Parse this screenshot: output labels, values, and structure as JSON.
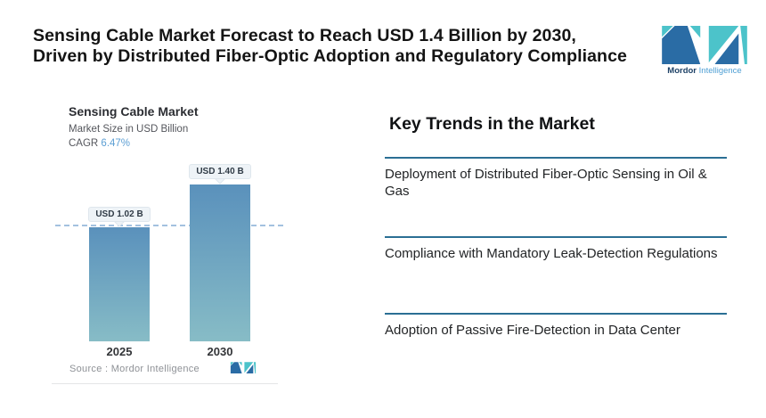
{
  "header": {
    "title_line1": "Sensing Cable Market Forecast to Reach USD 1.4 Billion by 2030,",
    "title_line2": "Driven by Distributed Fiber-Optic Adoption and Regulatory Compliance"
  },
  "logo": {
    "word_bold": "Mordor",
    "word_light": "Intelligence"
  },
  "chart": {
    "title": "Sensing Cable Market",
    "subtitle": "Market Size in USD Billion",
    "cagr_label": "CAGR ",
    "cagr_value": "6.47%",
    "source": "Source :  Mordor Intelligence"
  },
  "chart_data": {
    "type": "bar",
    "categories": [
      "2025",
      "2030"
    ],
    "values": [
      1.02,
      1.4
    ],
    "value_labels": [
      "USD 1.02 B",
      "USD 1.40 B"
    ],
    "title": "Sensing Cable Market",
    "ylabel": "Market Size in USD Billion",
    "cagr": "6.47%",
    "dashed_reference_value": 1.02,
    "ylim": [
      0,
      1.55
    ],
    "grid": false,
    "legend": false
  },
  "trends": {
    "heading": "Key Trends in the Market",
    "items": [
      "Deployment of Distributed Fiber-Optic Sensing in Oil & Gas",
      "Compliance with Mandatory Leak-Detection Regulations",
      "Adoption of Passive Fire-Detection in Data Center"
    ]
  },
  "colors": {
    "cagr_accent": "#5d9fd4",
    "trend_divider": "#2b6f94",
    "bar_gradient_top": "#5a91bc",
    "bar_gradient_bottom": "#87bcc6",
    "dashed_line": "#93b7da",
    "logo_dark": "#2a6ca5",
    "logo_teal": "#4cc3ca"
  }
}
